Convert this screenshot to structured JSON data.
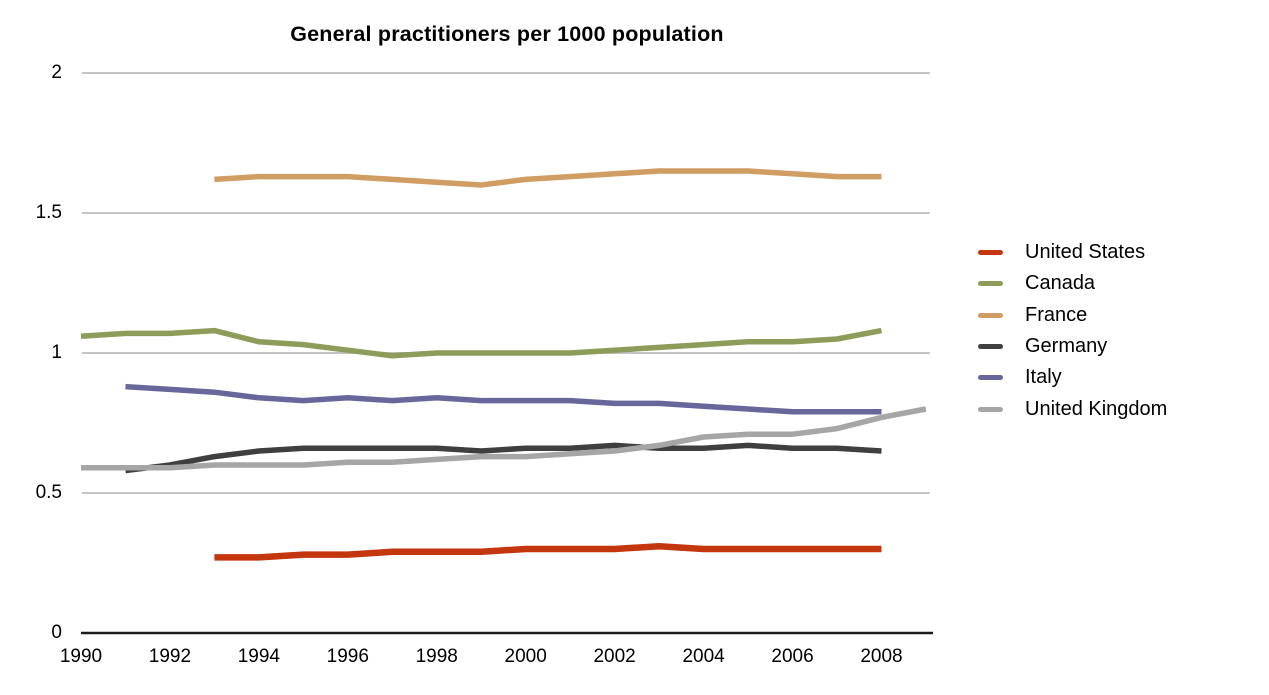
{
  "title": "General practitioners per 1000 population",
  "chart_data": {
    "type": "line",
    "title": "General practitioners per 1000 population",
    "xlabel": "",
    "ylabel": "",
    "xlim": [
      1990,
      2009.2
    ],
    "ylim": [
      0,
      2
    ],
    "grid": "horizontal",
    "gridline_values": [
      0.5,
      1,
      1.5,
      2
    ],
    "legend_position": "right",
    "x_tick_labels": [
      "1990",
      "1992",
      "1994",
      "1996",
      "1998",
      "2000",
      "2002",
      "2004",
      "2006",
      "2008"
    ],
    "x_tick_values": [
      1990,
      1992,
      1994,
      1996,
      1998,
      2000,
      2002,
      2004,
      2006,
      2008
    ],
    "y_tick_labels": [
      "0",
      "0.5",
      "1",
      "1.5",
      "2"
    ],
    "y_tick_values": [
      0,
      0.5,
      1,
      1.5,
      2
    ],
    "axis_color": "#1a1a1a",
    "gridline_color": "#c4c4c4",
    "series": [
      {
        "name": "United States",
        "color": "#c4360e",
        "points": [
          [
            1993,
            0.27
          ],
          [
            1994,
            0.27
          ],
          [
            1995,
            0.28
          ],
          [
            1996,
            0.28
          ],
          [
            1997,
            0.29
          ],
          [
            1998,
            0.29
          ],
          [
            1999,
            0.29
          ],
          [
            2000,
            0.3
          ],
          [
            2001,
            0.3
          ],
          [
            2002,
            0.3
          ],
          [
            2003,
            0.31
          ],
          [
            2004,
            0.3
          ],
          [
            2005,
            0.3
          ],
          [
            2006,
            0.3
          ],
          [
            2007,
            0.3
          ],
          [
            2008,
            0.3
          ]
        ]
      },
      {
        "name": "Canada",
        "color": "#8d9c5a",
        "points": [
          [
            1990,
            1.06
          ],
          [
            1991,
            1.07
          ],
          [
            1992,
            1.07
          ],
          [
            1993,
            1.08
          ],
          [
            1994,
            1.04
          ],
          [
            1995,
            1.03
          ],
          [
            1996,
            1.01
          ],
          [
            1997,
            0.99
          ],
          [
            1998,
            1.0
          ],
          [
            1999,
            1.0
          ],
          [
            2000,
            1.0
          ],
          [
            2001,
            1.0
          ],
          [
            2002,
            1.01
          ],
          [
            2003,
            1.02
          ],
          [
            2004,
            1.03
          ],
          [
            2005,
            1.04
          ],
          [
            2006,
            1.04
          ],
          [
            2007,
            1.05
          ],
          [
            2008,
            1.08
          ]
        ]
      },
      {
        "name": "France",
        "color": "#d09d62",
        "points": [
          [
            1993,
            1.62
          ],
          [
            1994,
            1.63
          ],
          [
            1995,
            1.63
          ],
          [
            1996,
            1.63
          ],
          [
            1997,
            1.62
          ],
          [
            1998,
            1.61
          ],
          [
            1999,
            1.6
          ],
          [
            2000,
            1.62
          ],
          [
            2001,
            1.63
          ],
          [
            2002,
            1.64
          ],
          [
            2003,
            1.65
          ],
          [
            2004,
            1.65
          ],
          [
            2005,
            1.65
          ],
          [
            2006,
            1.64
          ],
          [
            2007,
            1.63
          ],
          [
            2008,
            1.63
          ]
        ]
      },
      {
        "name": "Germany",
        "color": "#3f3f3f",
        "points": [
          [
            1991,
            0.58
          ],
          [
            1992,
            0.6
          ],
          [
            1993,
            0.63
          ],
          [
            1994,
            0.65
          ],
          [
            1995,
            0.66
          ],
          [
            1996,
            0.66
          ],
          [
            1997,
            0.66
          ],
          [
            1998,
            0.66
          ],
          [
            1999,
            0.65
          ],
          [
            2000,
            0.66
          ],
          [
            2001,
            0.66
          ],
          [
            2002,
            0.67
          ],
          [
            2003,
            0.66
          ],
          [
            2004,
            0.66
          ],
          [
            2005,
            0.67
          ],
          [
            2006,
            0.66
          ],
          [
            2007,
            0.66
          ],
          [
            2008,
            0.65
          ]
        ]
      },
      {
        "name": "Italy",
        "color": "#67679c",
        "points": [
          [
            1991,
            0.88
          ],
          [
            1992,
            0.87
          ],
          [
            1993,
            0.86
          ],
          [
            1994,
            0.84
          ],
          [
            1995,
            0.83
          ],
          [
            1996,
            0.84
          ],
          [
            1997,
            0.83
          ],
          [
            1998,
            0.84
          ],
          [
            1999,
            0.83
          ],
          [
            2000,
            0.83
          ],
          [
            2001,
            0.83
          ],
          [
            2002,
            0.82
          ],
          [
            2003,
            0.82
          ],
          [
            2004,
            0.81
          ],
          [
            2005,
            0.8
          ],
          [
            2006,
            0.79
          ],
          [
            2007,
            0.79
          ],
          [
            2008,
            0.79
          ]
        ]
      },
      {
        "name": "United Kingdom",
        "color": "#a6a6a6",
        "points": [
          [
            1990,
            0.59
          ],
          [
            1991,
            0.59
          ],
          [
            1992,
            0.59
          ],
          [
            1993,
            0.6
          ],
          [
            1994,
            0.6
          ],
          [
            1995,
            0.6
          ],
          [
            1996,
            0.61
          ],
          [
            1997,
            0.61
          ],
          [
            1998,
            0.62
          ],
          [
            1999,
            0.63
          ],
          [
            2000,
            0.63
          ],
          [
            2001,
            0.64
          ],
          [
            2002,
            0.65
          ],
          [
            2003,
            0.67
          ],
          [
            2004,
            0.7
          ],
          [
            2005,
            0.71
          ],
          [
            2006,
            0.71
          ],
          [
            2007,
            0.73
          ],
          [
            2008,
            0.77
          ],
          [
            2009,
            0.8
          ]
        ]
      }
    ]
  }
}
